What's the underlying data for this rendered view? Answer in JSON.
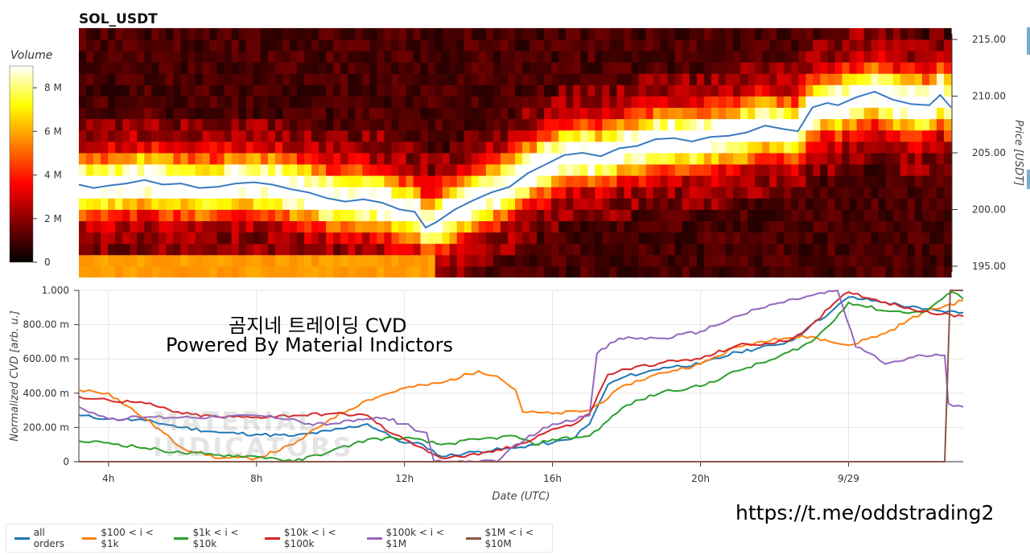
{
  "chart_data": [
    {
      "type": "heatmap",
      "title": "SOL_USDT",
      "colorbar": {
        "label": "Volume",
        "ticks": [
          "0",
          "2 M",
          "4 M",
          "6 M",
          "8 M"
        ],
        "range": [
          0,
          9
        ]
      },
      "y_right": {
        "label": "Price [USDT]",
        "ticks": [
          "195.00",
          "200.00",
          "205.00",
          "210.00",
          "215.00"
        ],
        "range": [
          194.5,
          215.5
        ]
      },
      "x_range_hours": [
        3.2,
        27.1
      ],
      "price_band_step": 1.0,
      "price_line_color": "#3a7bbf",
      "price_line": [
        [
          3.2,
          202.2
        ],
        [
          3.6,
          201.9
        ],
        [
          4.0,
          202.1
        ],
        [
          4.5,
          202.3
        ],
        [
          5.0,
          202.6
        ],
        [
          5.5,
          202.2
        ],
        [
          6.0,
          202.3
        ],
        [
          6.5,
          201.9
        ],
        [
          7.0,
          202.0
        ],
        [
          7.5,
          202.3
        ],
        [
          8.0,
          202.4
        ],
        [
          8.5,
          202.2
        ],
        [
          9.0,
          201.8
        ],
        [
          9.5,
          201.5
        ],
        [
          10.0,
          201.0
        ],
        [
          10.5,
          200.7
        ],
        [
          11.0,
          200.9
        ],
        [
          11.5,
          200.6
        ],
        [
          12.0,
          200.0
        ],
        [
          12.4,
          199.8
        ],
        [
          12.7,
          198.4
        ],
        [
          13.0,
          198.9
        ],
        [
          13.5,
          200.0
        ],
        [
          14.0,
          200.8
        ],
        [
          14.5,
          201.5
        ],
        [
          15.0,
          202.0
        ],
        [
          15.5,
          203.2
        ],
        [
          16.0,
          204.0
        ],
        [
          16.5,
          204.8
        ],
        [
          17.0,
          205.0
        ],
        [
          17.5,
          204.7
        ],
        [
          18.0,
          205.4
        ],
        [
          18.5,
          205.6
        ],
        [
          19.0,
          206.2
        ],
        [
          19.5,
          206.3
        ],
        [
          20.0,
          206.0
        ],
        [
          20.5,
          206.4
        ],
        [
          21.0,
          206.5
        ],
        [
          21.5,
          206.8
        ],
        [
          22.0,
          207.4
        ],
        [
          22.5,
          207.1
        ],
        [
          22.9,
          206.9
        ],
        [
          23.3,
          209.0
        ],
        [
          23.7,
          209.4
        ],
        [
          24.0,
          209.2
        ],
        [
          24.5,
          209.9
        ],
        [
          25.0,
          210.4
        ],
        [
          25.5,
          209.7
        ],
        [
          26.0,
          209.3
        ],
        [
          26.5,
          209.2
        ],
        [
          26.8,
          210.1
        ],
        [
          27.1,
          209.0
        ]
      ]
    },
    {
      "type": "line",
      "xlabel": "Date (UTC)",
      "ylabel": "Normalized CVD [arb. u.]",
      "x_ticks": [
        {
          "label": "4h",
          "x": 4
        },
        {
          "label": "8h",
          "x": 8
        },
        {
          "label": "12h",
          "x": 12
        },
        {
          "label": "16h",
          "x": 16
        },
        {
          "label": "20h",
          "x": 20
        },
        {
          "label": "9/29",
          "x": 24
        }
      ],
      "y_ticks": [
        {
          "label": "0",
          "y": 0
        },
        {
          "label": "200.00 m",
          "y": 0.2
        },
        {
          "label": "400.00 m",
          "y": 0.4
        },
        {
          "label": "600.00 m",
          "y": 0.6
        },
        {
          "label": "800.00 m",
          "y": 0.8
        },
        {
          "label": "1.000",
          "y": 1.0
        }
      ],
      "xlim": [
        3.2,
        27.1
      ],
      "ylim": [
        0,
        1.0
      ],
      "series": [
        {
          "name": "all orders",
          "color": "#1f77b4",
          "points": [
            [
              3.2,
              0.27
            ],
            [
              4,
              0.25
            ],
            [
              5,
              0.24
            ],
            [
              6,
              0.2
            ],
            [
              7,
              0.17
            ],
            [
              8,
              0.16
            ],
            [
              9,
              0.15
            ],
            [
              10,
              0.18
            ],
            [
              11,
              0.22
            ],
            [
              11.6,
              0.15
            ],
            [
              12,
              0.11
            ],
            [
              12.5,
              0.1
            ],
            [
              13,
              0.03
            ],
            [
              14,
              0.06
            ],
            [
              15,
              0.08
            ],
            [
              15.5,
              0.1
            ],
            [
              16,
              0.11
            ],
            [
              16.5,
              0.13
            ],
            [
              17,
              0.22
            ],
            [
              17.5,
              0.45
            ],
            [
              18,
              0.5
            ],
            [
              18.5,
              0.52
            ],
            [
              19,
              0.55
            ],
            [
              20,
              0.57
            ],
            [
              21,
              0.64
            ],
            [
              22,
              0.68
            ],
            [
              22.5,
              0.71
            ],
            [
              23,
              0.8
            ],
            [
              23.5,
              0.87
            ],
            [
              24,
              0.96
            ],
            [
              25,
              0.93
            ],
            [
              26,
              0.89
            ],
            [
              26.5,
              0.88
            ],
            [
              27.1,
              0.87
            ]
          ]
        },
        {
          "name": "$100 < i < $1k",
          "color": "#ff7f0e",
          "points": [
            [
              3.2,
              0.42
            ],
            [
              4,
              0.4
            ],
            [
              5,
              0.25
            ],
            [
              6,
              0.08
            ],
            [
              7,
              0.02
            ],
            [
              8,
              0.02
            ],
            [
              9,
              0.1
            ],
            [
              10,
              0.25
            ],
            [
              11,
              0.36
            ],
            [
              12,
              0.43
            ],
            [
              13,
              0.46
            ],
            [
              14,
              0.53
            ],
            [
              14.5,
              0.5
            ],
            [
              15,
              0.42
            ],
            [
              15.2,
              0.29
            ],
            [
              16,
              0.28
            ],
            [
              17,
              0.3
            ],
            [
              18,
              0.45
            ],
            [
              19,
              0.52
            ],
            [
              20,
              0.57
            ],
            [
              21,
              0.67
            ],
            [
              22,
              0.72
            ],
            [
              23,
              0.73
            ],
            [
              23.5,
              0.7
            ],
            [
              24,
              0.68
            ],
            [
              25,
              0.75
            ],
            [
              26,
              0.87
            ],
            [
              27.1,
              0.94
            ]
          ]
        },
        {
          "name": "$1k < i < $10k",
          "color": "#2ca02c",
          "points": [
            [
              3.2,
              0.12
            ],
            [
              4,
              0.11
            ],
            [
              5,
              0.08
            ],
            [
              6,
              0.05
            ],
            [
              7,
              0.04
            ],
            [
              8,
              0.03
            ],
            [
              8.5,
              0.02
            ],
            [
              9,
              0.0
            ],
            [
              10,
              0.06
            ],
            [
              11,
              0.13
            ],
            [
              12,
              0.14
            ],
            [
              13,
              0.1
            ],
            [
              14,
              0.13
            ],
            [
              15,
              0.15
            ],
            [
              15.5,
              0.1
            ],
            [
              16,
              0.13
            ],
            [
              17,
              0.15
            ],
            [
              17.5,
              0.24
            ],
            [
              18,
              0.33
            ],
            [
              19,
              0.41
            ],
            [
              20,
              0.44
            ],
            [
              21,
              0.53
            ],
            [
              22,
              0.6
            ],
            [
              23,
              0.7
            ],
            [
              23.5,
              0.8
            ],
            [
              24,
              0.93
            ],
            [
              25,
              0.88
            ],
            [
              26,
              0.87
            ],
            [
              26.8,
              0.99
            ],
            [
              27.1,
              0.95
            ]
          ]
        },
        {
          "name": "$10k < i < $100k",
          "color": "#d62728",
          "points": [
            [
              3.2,
              0.38
            ],
            [
              4,
              0.36
            ],
            [
              5,
              0.34
            ],
            [
              6,
              0.28
            ],
            [
              7,
              0.26
            ],
            [
              8,
              0.26
            ],
            [
              9,
              0.27
            ],
            [
              10,
              0.28
            ],
            [
              11,
              0.27
            ],
            [
              11.6,
              0.17
            ],
            [
              12,
              0.13
            ],
            [
              12.5,
              0.08
            ],
            [
              13,
              0.02
            ],
            [
              14,
              0.04
            ],
            [
              15,
              0.09
            ],
            [
              16,
              0.19
            ],
            [
              16.5,
              0.21
            ],
            [
              17,
              0.28
            ],
            [
              17.5,
              0.51
            ],
            [
              18,
              0.54
            ],
            [
              19,
              0.58
            ],
            [
              20,
              0.6
            ],
            [
              21,
              0.68
            ],
            [
              22,
              0.69
            ],
            [
              22.5,
              0.72
            ],
            [
              23,
              0.8
            ],
            [
              23.5,
              0.9
            ],
            [
              24,
              0.99
            ],
            [
              25,
              0.93
            ],
            [
              26,
              0.88
            ],
            [
              26.5,
              0.86
            ],
            [
              27.1,
              0.85
            ]
          ]
        },
        {
          "name": "$100k < i < $1M",
          "color": "#9467bd",
          "points": [
            [
              3.2,
              0.32
            ],
            [
              4,
              0.25
            ],
            [
              5,
              0.26
            ],
            [
              6,
              0.26
            ],
            [
              7,
              0.26
            ],
            [
              8,
              0.27
            ],
            [
              9,
              0.25
            ],
            [
              9.3,
              0.22
            ],
            [
              10,
              0.22
            ],
            [
              11,
              0.25
            ],
            [
              11.7,
              0.25
            ],
            [
              11.8,
              0.22
            ],
            [
              12.1,
              0.22
            ],
            [
              12.3,
              0.18
            ],
            [
              12.6,
              0.17
            ],
            [
              12.8,
              0.0
            ],
            [
              14,
              0.0
            ],
            [
              14.5,
              0.0
            ],
            [
              15,
              0.1
            ],
            [
              16,
              0.22
            ],
            [
              17,
              0.27
            ],
            [
              17.2,
              0.63
            ],
            [
              17.8,
              0.72
            ],
            [
              19,
              0.72
            ],
            [
              20,
              0.76
            ],
            [
              21,
              0.85
            ],
            [
              22,
              0.92
            ],
            [
              23,
              0.97
            ],
            [
              23.7,
              1.0
            ],
            [
              24.2,
              0.67
            ],
            [
              24.7,
              0.62
            ],
            [
              25,
              0.57
            ],
            [
              26,
              0.62
            ],
            [
              26.6,
              0.62
            ],
            [
              26.7,
              0.34
            ],
            [
              27.1,
              0.32
            ]
          ]
        },
        {
          "name": "$1M < i < $10M",
          "color": "#8c564b",
          "points": [
            [
              3.2,
              0.0
            ],
            [
              26.5,
              0.0
            ],
            [
              26.6,
              0.0
            ],
            [
              26.75,
              1.0
            ],
            [
              27.1,
              1.0
            ]
          ]
        }
      ]
    }
  ],
  "overlay": {
    "line1": "곰지네 트레이딩 CVD",
    "line2": "Powered By Material Indictors",
    "link": "https://t.me/oddstrading2",
    "watermark1": "MATERIAL",
    "watermark2": "INDICATORS"
  }
}
